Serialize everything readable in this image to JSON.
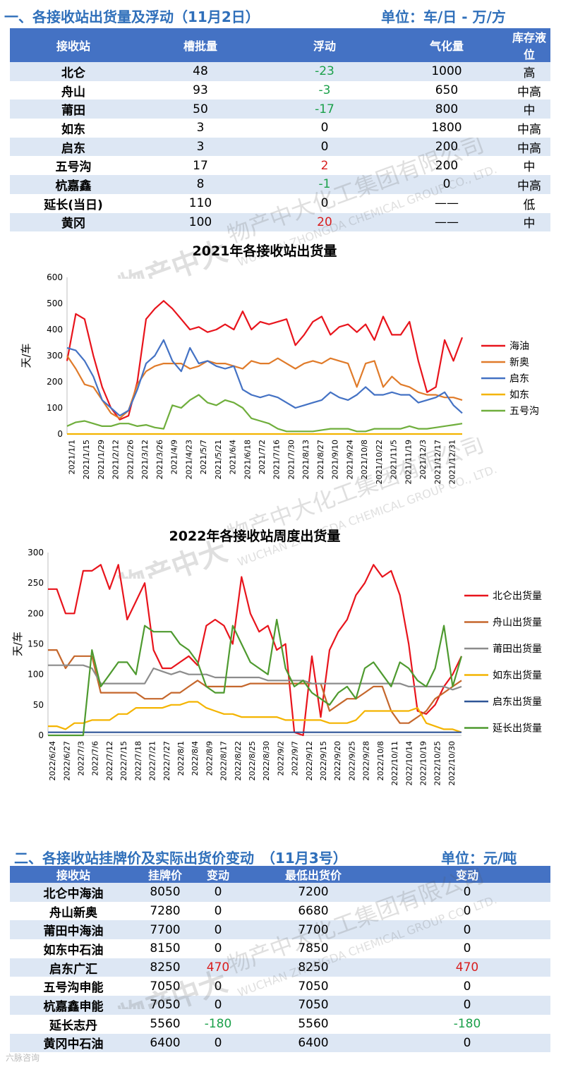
{
  "section1": {
    "title": "一、各接收站出货量及浮动（11月2日）",
    "unit": "单位：车/日 - 万/方",
    "headers": [
      "接收站",
      "槽批量",
      "浮动",
      "气化量",
      "库存液位"
    ],
    "rows": [
      {
        "name": "北仑",
        "batch": "48",
        "change": "-23",
        "gas": "1000",
        "level": "高"
      },
      {
        "name": "舟山",
        "batch": "93",
        "change": "-3",
        "gas": "650",
        "level": "中高"
      },
      {
        "name": "莆田",
        "batch": "50",
        "change": "-17",
        "gas": "800",
        "level": "中"
      },
      {
        "name": "如东",
        "batch": "3",
        "change": "0",
        "gas": "1800",
        "level": "中高"
      },
      {
        "name": "启东",
        "batch": "3",
        "change": "0",
        "gas": "200",
        "level": "中高"
      },
      {
        "name": "五号沟",
        "batch": "17",
        "change": "2",
        "gas": "200",
        "level": "中"
      },
      {
        "name": "杭嘉鑫",
        "batch": "8",
        "change": "-1",
        "gas": "0",
        "level": "中高"
      },
      {
        "name": "延长(当日)",
        "batch": "110",
        "change": "0",
        "gas": "——",
        "level": "低"
      },
      {
        "name": "黄冈",
        "batch": "100",
        "change": "20",
        "gas": "——",
        "level": "中"
      }
    ]
  },
  "section2": {
    "title": "二、各接收站挂牌价及实际出货价变动　（11月3号）",
    "unit": "单位：元/吨",
    "headers": [
      "接收站",
      "挂牌价",
      "变动",
      "最低出货价",
      "变动"
    ],
    "rows": [
      {
        "name": "北仑中海油",
        "list": "8050",
        "change1": "0",
        "low": "7200",
        "change2": "0"
      },
      {
        "name": "舟山新奥",
        "list": "7280",
        "change1": "0",
        "low": "6680",
        "change2": "0"
      },
      {
        "name": "莆田中海油",
        "list": "7700",
        "change1": "0",
        "low": "7700",
        "change2": "0"
      },
      {
        "name": "如东中石油",
        "list": "8150",
        "change1": "0",
        "low": "7850",
        "change2": "0"
      },
      {
        "name": "启东广汇",
        "list": "8250",
        "change1": "470",
        "low": "8250",
        "change2": "470"
      },
      {
        "name": "五号沟申能",
        "list": "7050",
        "change1": "0",
        "low": "7050",
        "change2": "0"
      },
      {
        "name": "杭嘉鑫申能",
        "list": "7050",
        "change1": "0",
        "low": "7050",
        "change2": "0"
      },
      {
        "name": "延长志丹",
        "list": "5560",
        "change1": "-180",
        "low": "5560",
        "change2": "-180"
      },
      {
        "name": "黄冈中石油",
        "list": "6400",
        "change1": "0",
        "low": "6400",
        "change2": "0"
      }
    ]
  },
  "watermark": {
    "cn": "物产中大化工集团有限公司",
    "en": "WUCHAN ZHONGDA CHEMICAL GROUP CO., LTD.",
    "brand_cn": "物产中大",
    "brand_en": "WZ GROUP"
  },
  "footer": "六脉咨询",
  "chart_data": [
    {
      "type": "line",
      "title": "2021年各接收站出货量",
      "ylabel": "天/车",
      "ylim": [
        0,
        600
      ],
      "yticks": [
        0,
        100,
        200,
        300,
        400,
        500,
        600
      ],
      "xticks": [
        "2021/1/1",
        "2021/1/15",
        "2021/1/29",
        "2021/2/12",
        "2021/2/26",
        "2021/3/12",
        "2021/3/26",
        "2021/4/9",
        "2021/4/23",
        "2021/5/7",
        "2021/5/21",
        "2021/6/4",
        "2021/6/18",
        "2021/7/2",
        "2021/7/16",
        "2021/7/30",
        "2021/8/13",
        "2021/8/27",
        "2021/9/10",
        "2021/9/24",
        "2021/10/8",
        "2021/10/22",
        "2021/11/5",
        "2021/11/19",
        "2021/12/3",
        "2021/12/17",
        "2021/12/31"
      ],
      "legend_position": "right",
      "series": [
        {
          "name": "海油",
          "color": "#e8141c",
          "values": [
            280,
            460,
            440,
            300,
            180,
            100,
            55,
            70,
            200,
            440,
            480,
            510,
            480,
            440,
            400,
            410,
            390,
            400,
            420,
            400,
            470,
            400,
            430,
            420,
            430,
            440,
            340,
            380,
            430,
            450,
            380,
            410,
            420,
            390,
            420,
            360,
            450,
            380,
            380,
            430,
            280,
            160,
            180,
            360,
            280,
            370
          ]
        },
        {
          "name": "新奥",
          "color": "#e07b2a",
          "values": [
            300,
            250,
            190,
            180,
            130,
            80,
            60,
            90,
            190,
            240,
            260,
            270,
            270,
            270,
            250,
            260,
            280,
            270,
            270,
            260,
            250,
            280,
            270,
            270,
            290,
            270,
            250,
            270,
            280,
            270,
            290,
            280,
            270,
            180,
            270,
            280,
            180,
            220,
            190,
            180,
            160,
            150,
            150,
            140,
            140,
            130
          ]
        },
        {
          "name": "启东",
          "color": "#4472c4",
          "values": [
            330,
            320,
            280,
            220,
            130,
            100,
            70,
            90,
            170,
            270,
            300,
            360,
            280,
            240,
            330,
            270,
            280,
            260,
            250,
            260,
            170,
            150,
            140,
            150,
            140,
            120,
            100,
            110,
            120,
            130,
            160,
            140,
            130,
            150,
            180,
            150,
            150,
            160,
            150,
            150,
            120,
            130,
            140,
            160,
            110,
            80
          ]
        },
        {
          "name": "如东",
          "color": "#f4b400",
          "values": [
            0,
            0,
            0,
            0,
            0,
            0,
            0,
            0,
            0,
            0,
            0,
            0,
            0,
            0,
            0,
            0,
            0,
            0,
            0,
            0,
            0,
            0,
            0,
            0,
            0,
            0,
            0,
            0,
            0,
            0,
            0,
            0,
            0,
            0,
            0,
            0,
            0,
            0,
            0,
            0,
            0,
            0,
            0,
            0,
            0,
            0
          ]
        },
        {
          "name": "五号沟",
          "color": "#6fae3c",
          "values": [
            30,
            45,
            50,
            40,
            30,
            30,
            40,
            40,
            30,
            35,
            25,
            20,
            110,
            100,
            130,
            150,
            120,
            110,
            130,
            120,
            100,
            60,
            50,
            40,
            20,
            10,
            10,
            10,
            10,
            15,
            20,
            20,
            20,
            10,
            10,
            20,
            20,
            20,
            20,
            30,
            20,
            20,
            25,
            30,
            35,
            40
          ]
        }
      ]
    },
    {
      "type": "line",
      "title": "2022年各接收站周度出货量",
      "ylabel": "天/车",
      "ylim": [
        0,
        300
      ],
      "yticks": [
        0,
        50,
        100,
        150,
        200,
        250,
        300
      ],
      "xticks": [
        "2022/6/24",
        "2022/6/27",
        "2022/7/3",
        "2022/7/6",
        "2022/7/12",
        "2022/7/15",
        "2022/7/18",
        "2022/7/21",
        "2022/7/27",
        "2022/8/1",
        "2022/8/4",
        "2022/8/9",
        "2022/8/17",
        "2022/8/22",
        "2022/8/25",
        "2022/8/30",
        "2022/9/2",
        "2022/9/7",
        "2022/9/12",
        "2022/9/15",
        "2022/9/20",
        "2022/9/25",
        "2022/9/28",
        "2022/10/8",
        "2022/10/11",
        "2022/10/14",
        "2022/10/19",
        "2022/10/25",
        "2022/10/30"
      ],
      "legend_position": "right",
      "series": [
        {
          "name": "北仑出货量",
          "color": "#e8141c",
          "values": [
            240,
            240,
            200,
            200,
            270,
            270,
            280,
            240,
            280,
            190,
            220,
            250,
            140,
            110,
            110,
            120,
            130,
            115,
            180,
            190,
            180,
            150,
            260,
            200,
            170,
            180,
            140,
            150,
            5,
            0,
            130,
            30,
            140,
            170,
            190,
            230,
            250,
            280,
            260,
            270,
            230,
            150,
            40,
            35,
            50,
            80,
            100,
            130
          ]
        },
        {
          "name": "舟山出货量",
          "color": "#c5672c",
          "values": [
            140,
            140,
            110,
            130,
            130,
            130,
            70,
            70,
            70,
            70,
            70,
            60,
            60,
            60,
            70,
            70,
            80,
            90,
            80,
            80,
            80,
            80,
            80,
            85,
            85,
            85,
            85,
            85,
            85,
            85,
            85,
            85,
            40,
            50,
            60,
            60,
            70,
            80,
            80,
            40,
            20,
            20,
            30,
            40,
            60,
            70,
            80,
            90
          ]
        },
        {
          "name": "莆田出货量",
          "color": "#8c8c8c",
          "values": [
            115,
            115,
            115,
            115,
            115,
            110,
            85,
            85,
            85,
            85,
            85,
            85,
            110,
            105,
            100,
            105,
            100,
            100,
            100,
            95,
            95,
            95,
            95,
            95,
            95,
            90,
            90,
            90,
            90,
            90,
            85,
            85,
            85,
            85,
            85,
            85,
            85,
            85,
            85,
            85,
            85,
            80,
            80,
            80,
            80,
            80,
            75,
            80
          ]
        },
        {
          "name": "如东出货量",
          "color": "#f4b400",
          "values": [
            15,
            15,
            10,
            20,
            20,
            25,
            25,
            25,
            35,
            35,
            45,
            45,
            45,
            45,
            50,
            50,
            55,
            55,
            45,
            40,
            35,
            35,
            30,
            30,
            30,
            30,
            30,
            25,
            25,
            25,
            25,
            25,
            20,
            20,
            20,
            25,
            40,
            40,
            40,
            40,
            40,
            40,
            45,
            20,
            15,
            10,
            10,
            5
          ]
        },
        {
          "name": "启东出货量",
          "color": "#2f5597",
          "values": [
            5,
            5,
            5,
            5,
            5,
            5,
            5,
            5,
            5,
            5,
            5,
            5,
            5,
            5,
            5,
            5,
            5,
            5,
            5,
            5,
            5,
            5,
            5,
            5,
            5,
            5,
            5,
            5,
            5,
            5,
            5,
            5,
            5,
            5,
            5,
            5,
            5,
            5,
            5,
            5,
            5,
            5,
            5,
            5,
            5,
            5,
            5,
            5
          ]
        },
        {
          "name": "延长出货量",
          "color": "#4e9a2f",
          "values": [
            0,
            0,
            0,
            0,
            0,
            140,
            80,
            100,
            120,
            120,
            100,
            180,
            170,
            170,
            170,
            150,
            140,
            120,
            80,
            70,
            70,
            180,
            150,
            120,
            110,
            100,
            190,
            110,
            80,
            90,
            70,
            60,
            50,
            70,
            80,
            60,
            110,
            120,
            100,
            80,
            120,
            110,
            90,
            80,
            110,
            180,
            80,
            130
          ]
        }
      ]
    }
  ]
}
